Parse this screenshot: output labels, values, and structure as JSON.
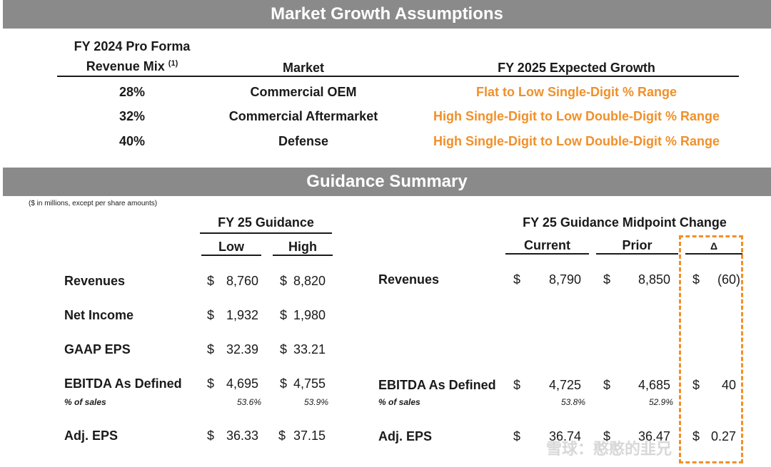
{
  "market": {
    "banner": "Market Growth Assumptions",
    "col_mix_line1": "FY 2024 Pro Forma",
    "col_mix_line2": "Revenue Mix",
    "col_mix_sup": "(1)",
    "col_market": "Market",
    "col_growth": "FY 2025 Expected Growth",
    "rows": [
      {
        "mix": "28%",
        "market": "Commercial OEM",
        "growth": "Flat to Low Single-Digit % Range"
      },
      {
        "mix": "32%",
        "market": "Commercial Aftermarket",
        "growth": "High Single-Digit to Low Double-Digit % Range"
      },
      {
        "mix": "40%",
        "market": "Defense",
        "growth": "High Single-Digit to Low Double-Digit % Range"
      }
    ]
  },
  "guidance": {
    "banner": "Guidance Summary",
    "note": "($ in millions, except per share amounts)",
    "left_title": "FY 25 Guidance",
    "low": "Low",
    "high": "High",
    "right_title": "FY 25 Guidance Midpoint Change",
    "current": "Current",
    "prior": "Prior",
    "delta": "Δ",
    "left_rows": [
      {
        "label": "Revenues",
        "low_sym": "$",
        "low": "8,760",
        "high_sym": "$",
        "high": "8,820"
      },
      {
        "label": "Net Income",
        "low_sym": "$",
        "low": "1,932",
        "high_sym": "$",
        "high": "1,980"
      },
      {
        "label": "GAAP EPS",
        "low_sym": "$",
        "low": "32.39",
        "high_sym": "$",
        "high": "33.21"
      },
      {
        "label": "EBITDA As Defined",
        "low_sym": "$",
        "low": "4,695",
        "high_sym": "$",
        "high": "4,755"
      },
      {
        "label": "Adj. EPS",
        "low_sym": "$",
        "low": "36.33",
        "high_sym": "$",
        "high": "37.15"
      }
    ],
    "left_pct": {
      "label": "% of sales",
      "low": "53.6%",
      "high": "53.9%"
    },
    "right_rows": [
      {
        "label": "Revenues",
        "cur_sym": "$",
        "cur": "8,790",
        "pri_sym": "$",
        "pri": "8,850",
        "del_sym": "$",
        "del": "(60)"
      },
      {
        "label": "EBITDA As Defined",
        "cur_sym": "$",
        "cur": "4,725",
        "pri_sym": "$",
        "pri": "4,685",
        "del_sym": "$",
        "del": "40"
      },
      {
        "label": "Adj. EPS",
        "cur_sym": "$",
        "cur": "36.74",
        "pri_sym": "$",
        "pri": "36.47",
        "del_sym": "$",
        "del": "0.27"
      }
    ],
    "right_pct": {
      "label": "% of sales",
      "cur": "53.8%",
      "pri": "52.9%"
    }
  },
  "watermark": "雪球：憨憨的韭兄",
  "colors": {
    "banner": "#8a8a8a",
    "accent": "#f0902a"
  }
}
